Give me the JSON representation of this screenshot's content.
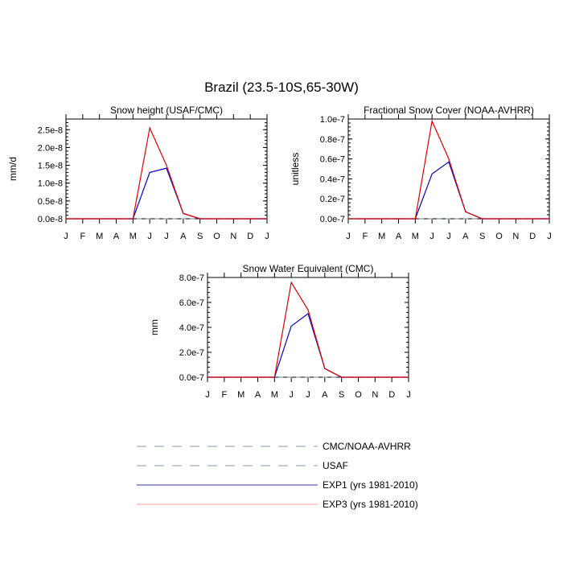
{
  "page_title": "Brazil (23.5-10S,65-30W)",
  "months": [
    "J",
    "F",
    "M",
    "A",
    "M",
    "J",
    "J",
    "A",
    "S",
    "O",
    "N",
    "D",
    "J"
  ],
  "colors": {
    "exp1": "#0000cc",
    "exp3": "#dd0000",
    "obs": "#8899aa",
    "legend_exp3": "#ff9999",
    "legend_exp1": "#3333aa"
  },
  "chart_data": [
    {
      "type": "line",
      "title": "Snow height (USAF/CMC)",
      "ylabel": "mm/d",
      "ylim": [
        0,
        2.8e-08
      ],
      "yticks": [
        0,
        5e-09,
        1e-08,
        1.5e-08,
        2e-08,
        2.5e-08
      ],
      "ytick_labels": [
        "0.0e-8",
        "0.5e-8",
        "1.0e-8",
        "1.5e-8",
        "2.0e-8",
        "2.5e-8"
      ],
      "series": [
        {
          "name": "EXP3 (yrs 1981-2010)",
          "values": [
            0,
            0,
            0,
            0,
            0,
            2.55e-08,
            1.5e-08,
            1.5e-09,
            0,
            0,
            0,
            0,
            0
          ]
        },
        {
          "name": "EXP1 (yrs 1981-2010)",
          "values": [
            0,
            0,
            0,
            0,
            0,
            1.3e-08,
            1.42e-08,
            1.5e-09,
            0,
            0,
            0,
            0,
            0
          ]
        },
        {
          "name": "USAF",
          "values": [
            0,
            0,
            0,
            0,
            0,
            0,
            0,
            0,
            0,
            0,
            0,
            0,
            0
          ]
        }
      ]
    },
    {
      "type": "line",
      "title": "Fractional Snow Cover (NOAA-AVHRR)",
      "ylabel": "unitless",
      "ylim": [
        0,
        1e-07
      ],
      "yticks": [
        0,
        2e-08,
        4e-08,
        6e-08,
        8e-08,
        1e-07
      ],
      "ytick_labels": [
        "0.0e-7",
        "0.2e-7",
        "0.4e-7",
        "0.6e-7",
        "0.8e-7",
        "1.0e-7"
      ],
      "series": [
        {
          "name": "EXP3 (yrs 1981-2010)",
          "values": [
            0,
            0,
            0,
            0,
            0,
            9.8e-08,
            6e-08,
            7e-09,
            0,
            0,
            0,
            0,
            0
          ]
        },
        {
          "name": "EXP1 (yrs 1981-2010)",
          "values": [
            0,
            0,
            0,
            0,
            0,
            4.5e-08,
            5.7e-08,
            7e-09,
            0,
            0,
            0,
            0,
            0
          ]
        },
        {
          "name": "CMC/NOAA-AVHRR",
          "values": [
            0,
            0,
            0,
            0,
            0,
            0,
            0,
            0,
            0,
            0,
            0,
            0,
            0
          ]
        }
      ]
    },
    {
      "type": "line",
      "title": "Snow Water Equivalent (CMC)",
      "ylabel": "mm",
      "ylim": [
        0,
        8e-07
      ],
      "yticks": [
        0,
        2e-07,
        4e-07,
        6e-07,
        8e-07
      ],
      "ytick_labels": [
        "0.0e-7",
        "2.0e-7",
        "4.0e-7",
        "6.0e-7",
        "8.0e-7"
      ],
      "series": [
        {
          "name": "EXP3 (yrs 1981-2010)",
          "values": [
            0,
            0,
            0,
            0,
            0,
            7.6e-07,
            5.4e-07,
            7e-08,
            0,
            0,
            0,
            0,
            0
          ]
        },
        {
          "name": "EXP1 (yrs 1981-2010)",
          "values": [
            0,
            0,
            0,
            0,
            0,
            4.1e-07,
            5.1e-07,
            7e-08,
            0,
            0,
            0,
            0,
            0
          ]
        },
        {
          "name": "CMC/NOAA-AVHRR",
          "values": [
            0,
            0,
            0,
            0,
            0,
            0,
            0,
            0,
            0,
            0,
            0,
            0,
            0
          ]
        }
      ]
    }
  ],
  "legend": [
    {
      "label": "CMC/NOAA-AVHRR",
      "style": "dashed",
      "color": "#8899aa"
    },
    {
      "label": "USAF",
      "style": "dashed",
      "color": "#8899aa"
    },
    {
      "label": "EXP1 (yrs 1981-2010)",
      "style": "solid",
      "color": "#3333aa"
    },
    {
      "label": "EXP3 (yrs 1981-2010)",
      "style": "solid",
      "color": "#ff9999"
    }
  ]
}
